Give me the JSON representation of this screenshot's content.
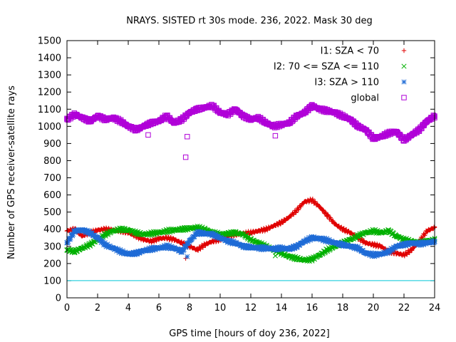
{
  "chart_data": {
    "type": "scatter",
    "title": "NRAYS. SISTED rt 30s mode. 236, 2022. Mask 30 deg",
    "xlabel": "GPS time [hours of doy 236, 2022]",
    "ylabel": "Number of GPS receiver-satellite rays",
    "xlim": [
      0,
      24
    ],
    "ylim": [
      0,
      1500
    ],
    "xticks": [
      0,
      2,
      4,
      6,
      8,
      10,
      12,
      14,
      16,
      18,
      20,
      22,
      24
    ],
    "yticks": [
      0,
      100,
      200,
      300,
      400,
      500,
      600,
      700,
      800,
      900,
      1000,
      1100,
      1200,
      1300,
      1400,
      1500
    ],
    "threshold": {
      "value": 100,
      "color": "#00c8d8"
    },
    "legend_position": "top-right",
    "series": [
      {
        "name": "I1: SZA < 70",
        "marker": "plus",
        "color": "#e00000",
        "x": [
          0.0,
          0.5,
          1.0,
          1.5,
          2.0,
          2.5,
          3.0,
          3.5,
          4.0,
          4.5,
          5.0,
          5.5,
          6.0,
          6.5,
          7.0,
          7.5,
          8.0,
          8.5,
          9.0,
          9.5,
          10.0,
          10.5,
          11.0,
          11.5,
          12.0,
          12.5,
          13.0,
          13.5,
          14.0,
          14.5,
          15.0,
          15.5,
          16.0,
          16.5,
          17.0,
          17.5,
          18.0,
          18.5,
          19.0,
          19.5,
          20.0,
          20.5,
          21.0,
          21.5,
          22.0,
          22.5,
          23.0,
          23.5,
          24.0
        ],
        "y": [
          390,
          400,
          360,
          380,
          395,
          400,
          395,
          390,
          380,
          360,
          340,
          330,
          345,
          350,
          340,
          320,
          300,
          280,
          310,
          330,
          340,
          360,
          370,
          375,
          380,
          390,
          400,
          420,
          440,
          470,
          510,
          560,
          570,
          530,
          480,
          430,
          400,
          380,
          350,
          320,
          310,
          300,
          270,
          260,
          250,
          280,
          330,
          390,
          410
        ]
      },
      {
        "name": "I2: 70 <= SZA <= 110",
        "marker": "cross",
        "color": "#00b000",
        "x": [
          0.0,
          0.5,
          1.0,
          1.5,
          2.0,
          2.5,
          3.0,
          3.5,
          4.0,
          4.5,
          5.0,
          5.5,
          6.0,
          6.5,
          7.0,
          7.5,
          8.0,
          8.5,
          9.0,
          9.5,
          10.0,
          10.5,
          11.0,
          11.5,
          12.0,
          12.5,
          13.0,
          13.5,
          14.0,
          14.5,
          15.0,
          15.5,
          16.0,
          16.5,
          17.0,
          17.5,
          18.0,
          18.5,
          19.0,
          19.5,
          20.0,
          20.5,
          21.0,
          21.5,
          22.0,
          22.5,
          23.0,
          23.5,
          24.0
        ],
        "y": [
          280,
          270,
          290,
          310,
          340,
          370,
          390,
          400,
          395,
          380,
          370,
          375,
          380,
          390,
          395,
          400,
          405,
          410,
          400,
          380,
          370,
          375,
          380,
          370,
          340,
          320,
          300,
          280,
          260,
          240,
          230,
          220,
          225,
          250,
          280,
          300,
          320,
          340,
          360,
          380,
          390,
          380,
          390,
          360,
          340,
          330,
          320,
          330,
          340
        ]
      },
      {
        "name": "I3: SZA > 110",
        "marker": "star",
        "color": "#1e6bd6",
        "x": [
          0.0,
          0.5,
          1.0,
          1.5,
          2.0,
          2.5,
          3.0,
          3.5,
          4.0,
          4.5,
          5.0,
          5.5,
          6.0,
          6.5,
          7.0,
          7.5,
          8.0,
          8.5,
          9.0,
          9.5,
          10.0,
          10.5,
          11.0,
          11.5,
          12.0,
          12.5,
          13.0,
          13.5,
          14.0,
          14.5,
          15.0,
          15.5,
          16.0,
          16.5,
          17.0,
          17.5,
          18.0,
          18.5,
          19.0,
          19.5,
          20.0,
          20.5,
          21.0,
          21.5,
          22.0,
          22.5,
          23.0,
          23.5,
          24.0
        ],
        "y": [
          320,
          390,
          395,
          380,
          350,
          310,
          290,
          270,
          255,
          260,
          275,
          285,
          290,
          300,
          290,
          270,
          330,
          380,
          375,
          370,
          350,
          330,
          320,
          300,
          295,
          290,
          290,
          285,
          290,
          285,
          300,
          330,
          350,
          345,
          335,
          320,
          310,
          300,
          290,
          260,
          250,
          255,
          270,
          300,
          310,
          320,
          315,
          320,
          330
        ]
      },
      {
        "name": "global",
        "marker": "square",
        "color": "#b000d8",
        "x": [
          0.0,
          0.5,
          1.0,
          1.5,
          2.0,
          2.5,
          3.0,
          3.5,
          4.0,
          4.5,
          5.0,
          5.5,
          6.0,
          6.5,
          7.0,
          7.5,
          8.0,
          8.5,
          9.0,
          9.5,
          10.0,
          10.5,
          11.0,
          11.5,
          12.0,
          12.5,
          13.0,
          13.5,
          14.0,
          14.5,
          15.0,
          15.5,
          16.0,
          16.5,
          17.0,
          17.5,
          18.0,
          18.5,
          19.0,
          19.5,
          20.0,
          20.5,
          21.0,
          21.5,
          22.0,
          22.5,
          23.0,
          23.5,
          24.0
        ],
        "y": [
          1040,
          1070,
          1050,
          1030,
          1060,
          1040,
          1050,
          1030,
          1000,
          980,
          1000,
          1020,
          1030,
          1060,
          1020,
          1040,
          1080,
          1100,
          1110,
          1120,
          1080,
          1070,
          1100,
          1060,
          1040,
          1050,
          1020,
          1000,
          1010,
          1020,
          1060,
          1080,
          1120,
          1100,
          1090,
          1080,
          1060,
          1040,
          1000,
          980,
          930,
          940,
          960,
          970,
          920,
          950,
          980,
          1030,
          1060
        ]
      }
    ],
    "outliers": [
      {
        "series": "global",
        "x": 7.75,
        "y": 820
      },
      {
        "series": "global",
        "x": 7.85,
        "y": 940
      },
      {
        "series": "global",
        "x": 13.6,
        "y": 945
      },
      {
        "series": "global",
        "x": 5.3,
        "y": 950
      },
      {
        "series": "I1: SZA < 70",
        "x": 7.75,
        "y": 230
      },
      {
        "series": "I3: SZA > 110",
        "x": 7.85,
        "y": 240
      },
      {
        "series": "I2: 70 <= SZA <= 110",
        "x": 13.6,
        "y": 245
      }
    ]
  }
}
